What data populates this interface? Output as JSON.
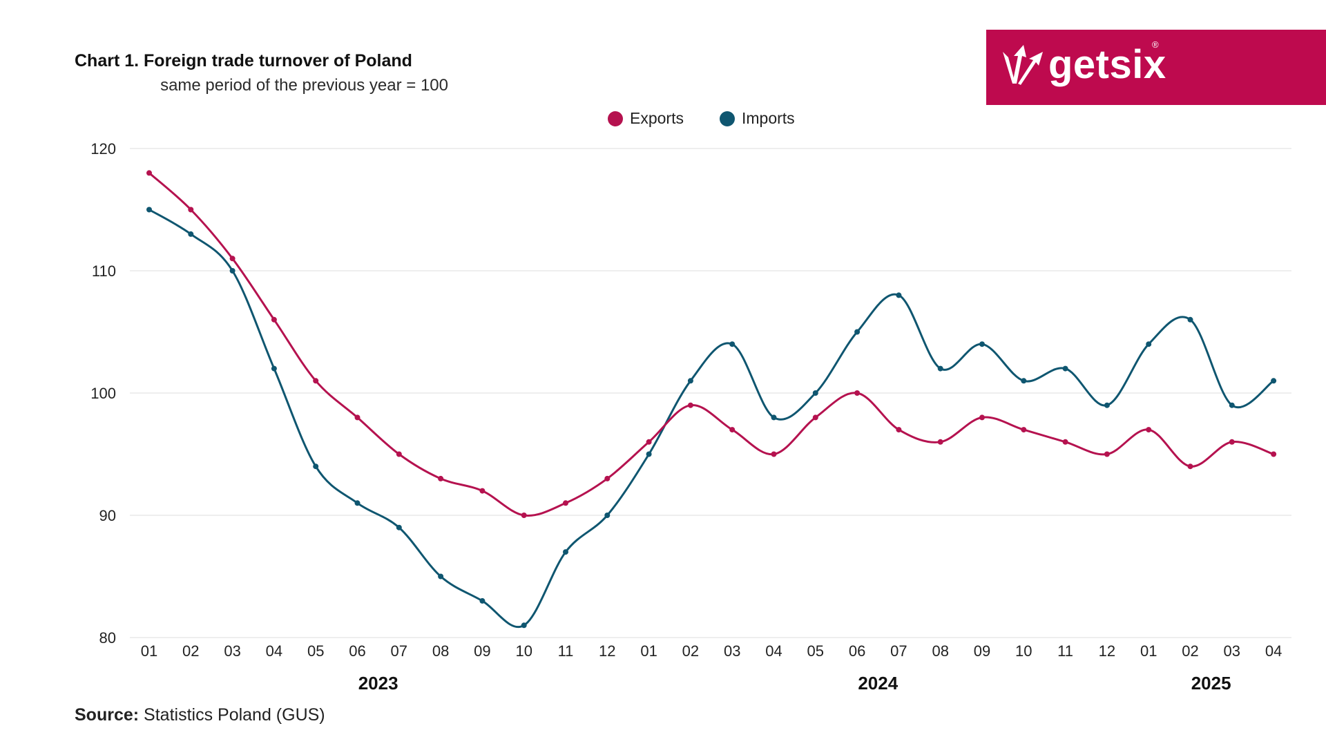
{
  "header": {
    "title": "Chart 1. Foreign trade turnover of Poland",
    "subtitle": "same period of the previous year = 100"
  },
  "brand": {
    "name": "getsix",
    "registered_mark": "®",
    "color": "#BE0A4E",
    "icon": "getsix-logo-icon"
  },
  "footer": {
    "source_label": "Source:",
    "source_text": "Statistics Poland (GUS)"
  },
  "chart_data": {
    "type": "line",
    "title": "Chart 1. Foreign trade turnover of Poland",
    "subtitle": "same period of the previous year = 100",
    "categories": [
      "01",
      "02",
      "03",
      "04",
      "05",
      "06",
      "07",
      "08",
      "09",
      "10",
      "11",
      "12",
      "01",
      "02",
      "03",
      "04",
      "05",
      "06",
      "07",
      "08",
      "09",
      "10",
      "11",
      "12",
      "01",
      "02",
      "03",
      "04"
    ],
    "year_groups": [
      {
        "label": "2023",
        "start_index": 0,
        "end_index": 11
      },
      {
        "label": "2024",
        "start_index": 12,
        "end_index": 23
      },
      {
        "label": "2025",
        "start_index": 24,
        "end_index": 27
      }
    ],
    "series": [
      {
        "name": "Exports",
        "color": "#B5124F",
        "values": [
          118,
          115,
          111,
          106,
          101,
          98,
          95,
          93,
          92,
          90,
          91,
          93,
          96,
          99,
          97,
          95,
          98,
          100,
          97,
          96,
          98,
          97,
          96,
          95,
          97,
          94,
          96,
          95
        ]
      },
      {
        "name": "Imports",
        "color": "#0F5670",
        "values": [
          115,
          113,
          110,
          102,
          94,
          91,
          89,
          85,
          83,
          81,
          87,
          90,
          95,
          101,
          104,
          98,
          100,
          105,
          108,
          102,
          104,
          101,
          102,
          99,
          104,
          106,
          99,
          101
        ]
      }
    ],
    "ylim": [
      80,
      120
    ],
    "yticks": [
      80,
      90,
      100,
      110,
      120
    ],
    "xlabel": "",
    "ylabel": "",
    "grid": true,
    "legend_position": "top-center"
  }
}
